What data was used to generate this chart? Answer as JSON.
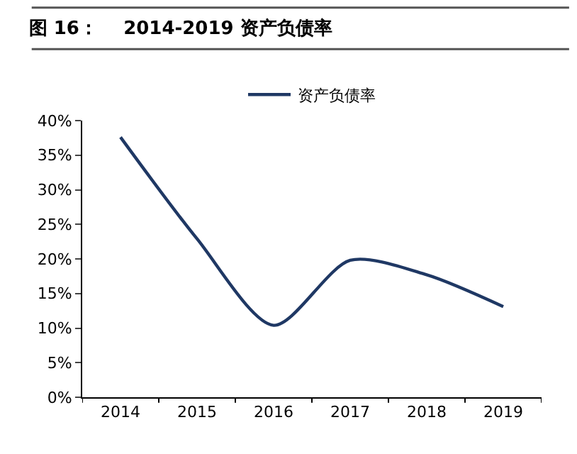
{
  "chart_data": {
    "type": "line",
    "title": "图 16：    2014-2019 资产负债率",
    "categories": [
      "2014",
      "2015",
      "2016",
      "2017",
      "2018",
      "2019"
    ],
    "series": [
      {
        "name": "资产负债率",
        "color": "#1f3864",
        "values": [
          37.6,
          22.9,
          10.4,
          19.8,
          17.7,
          13.1
        ]
      }
    ],
    "ylim": [
      0,
      40
    ],
    "yticks": [
      {
        "value": 0,
        "label": "0%"
      },
      {
        "value": 5,
        "label": "5%"
      },
      {
        "value": 10,
        "label": "10%"
      },
      {
        "value": 15,
        "label": "15%"
      },
      {
        "value": 20,
        "label": "20%"
      },
      {
        "value": 25,
        "label": "25%"
      },
      {
        "value": 30,
        "label": "30%"
      },
      {
        "value": 35,
        "label": "35%"
      },
      {
        "value": 40,
        "label": "40%"
      }
    ],
    "legend": "top",
    "marker": "none",
    "line_style": "solid"
  }
}
